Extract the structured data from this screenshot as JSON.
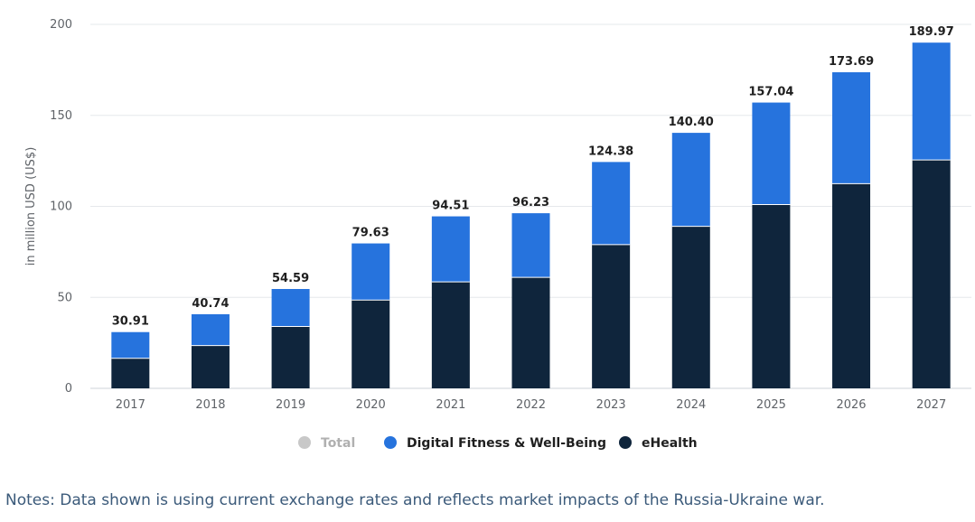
{
  "chart_data": {
    "type": "bar",
    "stacked": true,
    "categories": [
      "2017",
      "2018",
      "2019",
      "2020",
      "2021",
      "2022",
      "2023",
      "2024",
      "2025",
      "2026",
      "2027"
    ],
    "series": [
      {
        "name": "eHealth",
        "color": "#0f253c",
        "values": [
          16.5,
          23.5,
          34,
          48.5,
          58.5,
          61,
          79,
          89,
          101,
          112.5,
          125.5
        ]
      },
      {
        "name": "Digital Fitness & Well-Being",
        "color": "#2673dd",
        "values": [
          14.41,
          17.24,
          20.59,
          31.13,
          36.01,
          35.23,
          45.38,
          51.4,
          56.04,
          61.19,
          64.47
        ]
      }
    ],
    "totals": [
      "30.91",
      "40.74",
      "54.59",
      "79.63",
      "94.51",
      "96.23",
      "124.38",
      "140.40",
      "157.04",
      "173.69",
      "189.97"
    ],
    "ylabel": "in million USD (US$)",
    "ylim": [
      0,
      200
    ],
    "yticks": [
      0,
      50,
      100,
      150,
      200
    ],
    "grid": true,
    "legend": {
      "placement": "bottom-center",
      "entries": [
        {
          "name": "Total",
          "color": "#c8c8c8",
          "text_color": "#b0b0b0"
        },
        {
          "name": "Digital Fitness & Well-Being",
          "color": "#2673dd",
          "text_color": "#1f1f1f"
        },
        {
          "name": "eHealth",
          "color": "#0f253c",
          "text_color": "#1f1f1f"
        }
      ]
    }
  },
  "notes": "Notes: Data shown is using current exchange rates and reflects market impacts of the Russia-Ukraine war."
}
